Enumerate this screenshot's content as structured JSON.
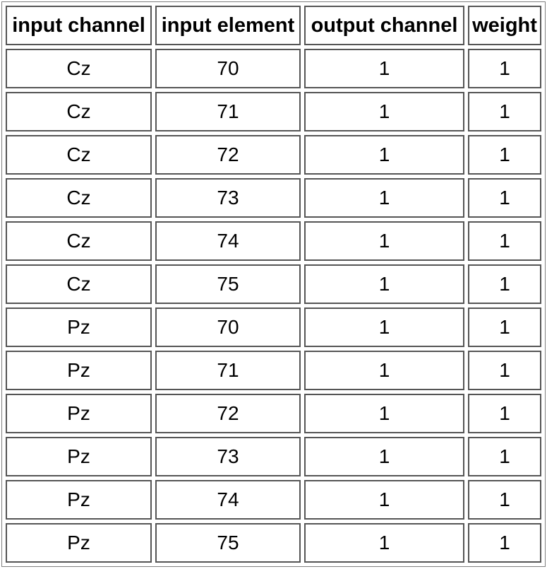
{
  "table": {
    "headers": [
      "input channel",
      "input element",
      "output channel",
      "weight"
    ],
    "rows": [
      [
        "Cz",
        "70",
        "1",
        "1"
      ],
      [
        "Cz",
        "71",
        "1",
        "1"
      ],
      [
        "Cz",
        "72",
        "1",
        "1"
      ],
      [
        "Cz",
        "73",
        "1",
        "1"
      ],
      [
        "Cz",
        "74",
        "1",
        "1"
      ],
      [
        "Cz",
        "75",
        "1",
        "1"
      ],
      [
        "Pz",
        "70",
        "1",
        "1"
      ],
      [
        "Pz",
        "71",
        "1",
        "1"
      ],
      [
        "Pz",
        "72",
        "1",
        "1"
      ],
      [
        "Pz",
        "73",
        "1",
        "1"
      ],
      [
        "Pz",
        "74",
        "1",
        "1"
      ],
      [
        "Pz",
        "75",
        "1",
        "1"
      ]
    ]
  }
}
